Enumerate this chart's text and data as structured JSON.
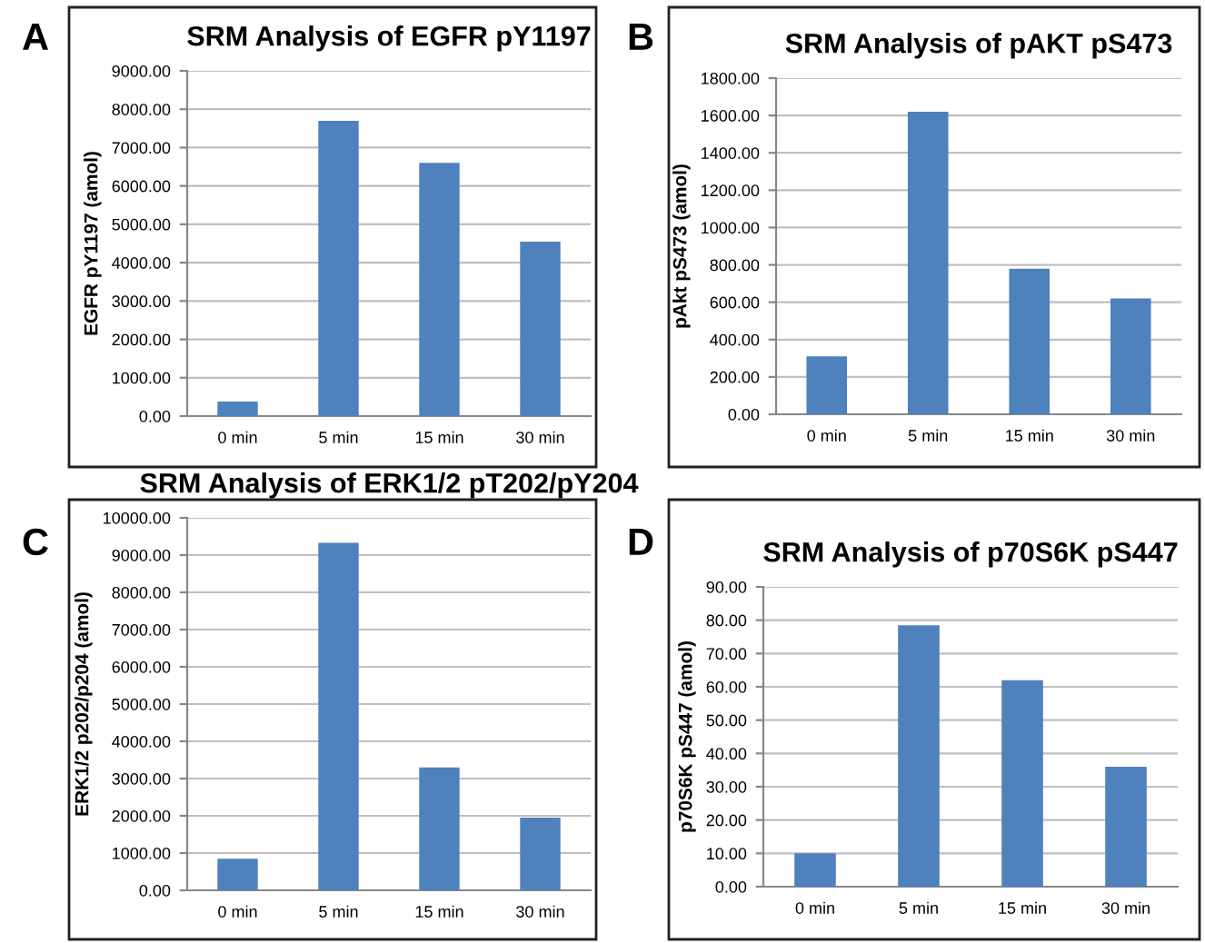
{
  "chart_data": [
    {
      "type": "bar",
      "title": "SRM Analysis of EGFR pY1197",
      "ylabel": "EGFR pY1197 (amol)",
      "annotations": [
        "A"
      ],
      "categories": [
        "0 min",
        "5 min",
        "15 min",
        "30 min"
      ],
      "values": [
        380,
        7700,
        6600,
        4550
      ],
      "color": "#4f81bd",
      "ylim": [
        0,
        9000
      ],
      "yticks": [
        {
          "value": 0,
          "label": "0.00"
        },
        {
          "value": 1000,
          "label": "1000.00"
        },
        {
          "value": 2000,
          "label": "2000.00"
        },
        {
          "value": 3000,
          "label": "3000.00"
        },
        {
          "value": 4000,
          "label": "4000.00"
        },
        {
          "value": 5000,
          "label": "5000.00"
        },
        {
          "value": 6000,
          "label": "6000.00"
        },
        {
          "value": 7000,
          "label": "7000.00"
        },
        {
          "value": 8000,
          "label": "8000.00"
        },
        {
          "value": 9000,
          "label": "9000.00"
        }
      ],
      "grid": "y",
      "legend": false
    },
    {
      "type": "bar",
      "title": "SRM Analysis of pAKT pS473",
      "ylabel": "pAkt pS473 (amol)",
      "annotations": [
        "B"
      ],
      "categories": [
        "0 min",
        "5 min",
        "15 min",
        "30 min"
      ],
      "values": [
        310,
        1620,
        780,
        620
      ],
      "color": "#4f81bd",
      "ylim": [
        0,
        1800
      ],
      "yticks": [
        {
          "value": 0,
          "label": "0.00"
        },
        {
          "value": 200,
          "label": "200.00"
        },
        {
          "value": 400,
          "label": "400.00"
        },
        {
          "value": 600,
          "label": "600.00"
        },
        {
          "value": 800,
          "label": "800.00"
        },
        {
          "value": 1000,
          "label": "1000.00"
        },
        {
          "value": 1200,
          "label": "1200.00"
        },
        {
          "value": 1400,
          "label": "1400.00"
        },
        {
          "value": 1600,
          "label": "1600.00"
        },
        {
          "value": 1800,
          "label": "1800.00"
        }
      ],
      "grid": "y",
      "legend": false
    },
    {
      "type": "bar",
      "title": "SRM Analysis of ERK1/2 pT202/pY204",
      "ylabel": "ERK1/2 p202/p204 (amol)",
      "annotations": [
        "C"
      ],
      "categories": [
        "0 min",
        "5 min",
        "15 min",
        "30 min"
      ],
      "values": [
        850,
        9330,
        3300,
        1950
      ],
      "color": "#4f81bd",
      "ylim": [
        0,
        10000
      ],
      "yticks": [
        {
          "value": 0,
          "label": "0.00"
        },
        {
          "value": 1000,
          "label": "1000.00"
        },
        {
          "value": 2000,
          "label": "2000.00"
        },
        {
          "value": 3000,
          "label": "3000.00"
        },
        {
          "value": 4000,
          "label": "4000.00"
        },
        {
          "value": 5000,
          "label": "5000.00"
        },
        {
          "value": 6000,
          "label": "6000.00"
        },
        {
          "value": 7000,
          "label": "7000.00"
        },
        {
          "value": 8000,
          "label": "8000.00"
        },
        {
          "value": 9000,
          "label": "9000.00"
        },
        {
          "value": 10000,
          "label": "10000.00"
        }
      ],
      "grid": "y",
      "legend": false
    },
    {
      "type": "bar",
      "title": "SRM Analysis of p70S6K pS447",
      "ylabel": "p70S6K pS447 (amol)",
      "annotations": [
        "D"
      ],
      "categories": [
        "0 min",
        "5 min",
        "15 min",
        "30 min"
      ],
      "values": [
        10,
        78.5,
        62,
        36
      ],
      "color": "#4f81bd",
      "ylim": [
        0,
        90
      ],
      "yticks": [
        {
          "value": 0,
          "label": "0.00"
        },
        {
          "value": 10,
          "label": "10.00"
        },
        {
          "value": 20,
          "label": "20.00"
        },
        {
          "value": 30,
          "label": "30.00"
        },
        {
          "value": 40,
          "label": "40.00"
        },
        {
          "value": 50,
          "label": "50.00"
        },
        {
          "value": 60,
          "label": "60.00"
        },
        {
          "value": 70,
          "label": "70.00"
        },
        {
          "value": 80,
          "label": "80.00"
        },
        {
          "value": 90,
          "label": "90.00"
        }
      ],
      "grid": "y",
      "legend": false
    }
  ]
}
